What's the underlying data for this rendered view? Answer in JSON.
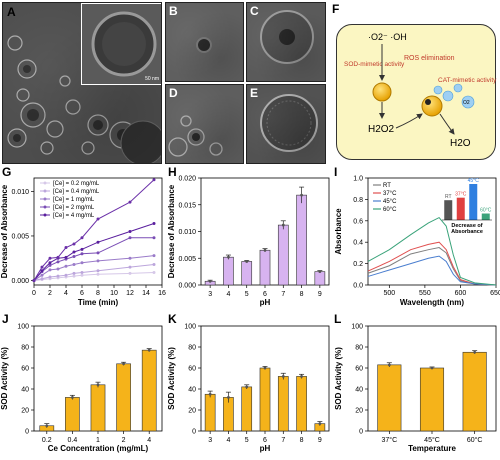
{
  "labels": {
    "A": "A",
    "B": "B",
    "C": "C",
    "D": "D",
    "E": "E",
    "F": "F",
    "G": "G",
    "H": "H",
    "I": "I",
    "J": "J",
    "K": "K",
    "L": "L"
  },
  "tem": {
    "A_scale": "50 nm"
  },
  "schematic": {
    "radicals": "·O2⁻  ·OH",
    "sod": "SOD-mimetic activity",
    "ros": "ROS elimination",
    "cat": "CAT-mimetic activity",
    "h2o2": "H2O2",
    "h2o": "H2O",
    "o2": "O2",
    "colors": {
      "bg": "#fbf6c2",
      "text_red": "#c0392b",
      "particle": "#f5b800"
    }
  },
  "chart_data": [
    {
      "id": "G",
      "type": "line",
      "xlabel": "Time (min)",
      "ylabel": "Decrease of Absorbance",
      "xlim": [
        0,
        16
      ],
      "ylim": [
        -0.0005,
        0.0115
      ],
      "xticks": [
        0,
        2,
        4,
        6,
        8,
        10,
        12,
        14,
        16
      ],
      "yticks": [
        0.0,
        0.005,
        0.01
      ],
      "yticklabels": [
        "0.000",
        "0.005",
        "0.010"
      ],
      "x": [
        0,
        1,
        2,
        3,
        4,
        5,
        6,
        8,
        12,
        15
      ],
      "series": [
        {
          "name": "[Ce] = 0.2 mg/mL",
          "color": "#d6c8e8",
          "values": [
            0,
            0.0001,
            0.0002,
            0.0003,
            0.0004,
            0.0005,
            0.0006,
            0.0007,
            0.0008,
            0.0009
          ]
        },
        {
          "name": "[Ce] = 0.4 mg/mL",
          "color": "#bca6dc",
          "values": [
            0,
            0.0002,
            0.0004,
            0.0005,
            0.0006,
            0.0008,
            0.0009,
            0.0011,
            0.0015,
            0.0018
          ]
        },
        {
          "name": "[Ce] = 1 mg/mL",
          "color": "#9a7bc9",
          "values": [
            0,
            0.0006,
            0.0012,
            0.0013,
            0.0016,
            0.0018,
            0.002,
            0.0022,
            0.0025,
            0.0028
          ]
        },
        {
          "name": "[Ce] = 2 mg/mL",
          "color": "#7a4db5",
          "values": [
            0,
            0.001,
            0.0017,
            0.0021,
            0.0024,
            0.0027,
            0.003,
            0.0031,
            0.0048,
            0.0048
          ]
        },
        {
          "name": "[Ce] = 4 mg/mL",
          "color": "#5a1f9e",
          "values": [
            0,
            0.0011,
            0.002,
            0.0025,
            0.0026,
            0.0032,
            0.0035,
            0.0043,
            0.0055,
            0.0064
          ]
        },
        {
          "name": "",
          "color": "#6a2fa8",
          "values": [
            0,
            0.0015,
            0.0025,
            0.0026,
            0.0037,
            0.0041,
            0.0048,
            0.0069,
            0.0088,
            0.0113
          ]
        }
      ]
    },
    {
      "id": "H",
      "type": "bar",
      "xlabel": "pH",
      "ylabel": "Decrease of Absorbance",
      "categories": [
        "3",
        "4",
        "5",
        "6",
        "7",
        "8",
        "9"
      ],
      "values": [
        0.0007,
        0.0052,
        0.0044,
        0.0065,
        0.0112,
        0.0168,
        0.0025
      ],
      "errors": [
        0.0002,
        0.0004,
        0.0002,
        0.0003,
        0.0008,
        0.0015,
        0.0002
      ],
      "ylim": [
        0,
        0.02
      ],
      "yticks": [
        0.0,
        0.005,
        0.01,
        0.015,
        0.02
      ],
      "yticklabels": [
        "0.000",
        "0.005",
        "0.010",
        "0.015",
        "0.020"
      ],
      "color": "#d7b3f0"
    },
    {
      "id": "I",
      "type": "line",
      "xlabel": "Wavelength (nm)",
      "ylabel": "Absorbance",
      "xlim": [
        470,
        650
      ],
      "ylim": [
        0,
        1.0
      ],
      "xticks": [
        500,
        550,
        600,
        650
      ],
      "yticks": [
        0.0,
        0.2,
        0.4,
        0.6,
        0.8,
        1.0
      ],
      "yticklabels": [
        "0.0",
        "0.2",
        "0.4",
        "0.6",
        "0.8",
        "1.0"
      ],
      "series": [
        {
          "name": "RT",
          "color": "#7f7f7f",
          "x": [
            470,
            500,
            530,
            555,
            570,
            580,
            590,
            600,
            620,
            650
          ],
          "values": [
            0.11,
            0.18,
            0.29,
            0.33,
            0.35,
            0.3,
            0.15,
            0.04,
            0.01,
            0.0
          ]
        },
        {
          "name": "37°C",
          "color": "#e05050",
          "x": [
            470,
            500,
            530,
            555,
            570,
            580,
            590,
            600,
            620,
            650
          ],
          "values": [
            0.13,
            0.22,
            0.33,
            0.38,
            0.4,
            0.33,
            0.17,
            0.05,
            0.01,
            0.0
          ]
        },
        {
          "name": "45°C",
          "color": "#4a7ecf",
          "x": [
            470,
            500,
            530,
            555,
            570,
            580,
            590,
            600,
            620,
            650
          ],
          "values": [
            0.08,
            0.14,
            0.2,
            0.25,
            0.27,
            0.22,
            0.1,
            0.03,
            0.01,
            0.0
          ]
        },
        {
          "name": "60°C",
          "color": "#3aa37a",
          "x": [
            470,
            500,
            530,
            555,
            570,
            580,
            590,
            600,
            620,
            650
          ],
          "values": [
            0.22,
            0.33,
            0.47,
            0.58,
            0.63,
            0.55,
            0.28,
            0.07,
            0.02,
            0.0
          ]
        }
      ],
      "inset": {
        "title": "Decrease of Absorbance",
        "categories": [
          "RT",
          "37°C",
          "45°C",
          "60°C"
        ],
        "values": [
          0.55,
          0.62,
          1.0,
          0.18
        ],
        "colors": [
          "#555555",
          "#e04040",
          "#2f7fe0",
          "#3aa37a"
        ]
      }
    },
    {
      "id": "J",
      "type": "bar",
      "xlabel": "Ce Concentration (mg/mL)",
      "ylabel": "SOD Activity (%)",
      "categories": [
        "0.2",
        "0.4",
        "1",
        "2",
        "4"
      ],
      "values": [
        5,
        32,
        44,
        64,
        77
      ],
      "errors": [
        2,
        2,
        2.5,
        1.5,
        1.5
      ],
      "ylim": [
        0,
        100
      ],
      "yticks": [
        0,
        20,
        40,
        60,
        80,
        100
      ],
      "color": "#f5b31a"
    },
    {
      "id": "K",
      "type": "bar",
      "xlabel": "pH",
      "ylabel": "SOD Activity (%)",
      "categories": [
        "3",
        "4",
        "5",
        "6",
        "7",
        "8",
        "9"
      ],
      "values": [
        35,
        32,
        42,
        60,
        52,
        52,
        7
      ],
      "errors": [
        3,
        5,
        2,
        1.5,
        3,
        2,
        2
      ],
      "ylim": [
        0,
        100
      ],
      "yticks": [
        0,
        20,
        40,
        60,
        80,
        100
      ],
      "color": "#f5b31a"
    },
    {
      "id": "L",
      "type": "bar",
      "xlabel": "Temperature",
      "ylabel": "SOD Activity (%)",
      "categories": [
        "37°C",
        "45°C",
        "60°C"
      ],
      "values": [
        63,
        60,
        75
      ],
      "errors": [
        2,
        1,
        1.5
      ],
      "ylim": [
        0,
        100
      ],
      "yticks": [
        0,
        20,
        40,
        60,
        80,
        100
      ],
      "color": "#f5b31a"
    }
  ]
}
